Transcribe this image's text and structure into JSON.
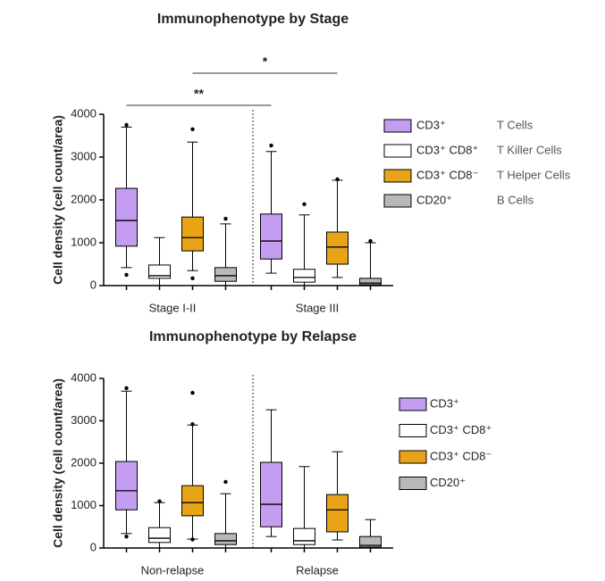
{
  "chart_data": [
    {
      "type": "box",
      "title": "Immunophenotype by Stage",
      "y_label": "Cell density (cell count/area)",
      "categories": [
        "Stage I-II",
        "Stage III"
      ],
      "ylim": [
        0,
        4000
      ],
      "yticks": [
        0,
        1000,
        2000,
        3000,
        4000
      ],
      "series": [
        {
          "name": "CD3⁺",
          "description": "T Cells",
          "color": "#c39df2",
          "min": [
            420,
            290
          ],
          "q1": [
            920,
            620
          ],
          "median": [
            1520,
            1040
          ],
          "q3": [
            2270,
            1670
          ],
          "max": [
            3700,
            3130
          ],
          "outliers": [
            [
              3750,
              250
            ],
            [
              3270
            ]
          ]
        },
        {
          "name": "CD3⁺ CD8⁺",
          "description": "T Killer Cells",
          "color": "#ffffff",
          "min": [
            0,
            0
          ],
          "q1": [
            170,
            80
          ],
          "median": [
            230,
            190
          ],
          "q3": [
            480,
            380
          ],
          "max": [
            1120,
            1650
          ],
          "outliers": [
            [],
            [
              1900
            ]
          ]
        },
        {
          "name": "CD3⁺ CD8⁻",
          "description": "T Helper Cells",
          "color": "#e8a317",
          "min": [
            350,
            190
          ],
          "q1": [
            810,
            500
          ],
          "median": [
            1120,
            900
          ],
          "q3": [
            1600,
            1250
          ],
          "max": [
            3350,
            2460
          ],
          "outliers": [
            [
              3650,
              170
            ],
            [
              2480
            ]
          ]
        },
        {
          "name": "CD20⁺",
          "description": "B Cells",
          "color": "#b8b8b8",
          "min": [
            0,
            0
          ],
          "q1": [
            100,
            20
          ],
          "median": [
            230,
            60
          ],
          "q3": [
            420,
            170
          ],
          "max": [
            1440,
            1000
          ],
          "outliers": [
            [
              1560
            ],
            [
              1040
            ]
          ]
        }
      ],
      "annotations": [
        {
          "text": "**",
          "series": 0
        },
        {
          "text": "*",
          "series": 2
        }
      ]
    },
    {
      "type": "box",
      "title": "Immunophenotype by Relapse",
      "y_label": "Cell density (cell count/area)",
      "categories": [
        "Non-relapse",
        "Relapse"
      ],
      "ylim": [
        0,
        4000
      ],
      "yticks": [
        0,
        1000,
        2000,
        3000,
        4000
      ],
      "series": [
        {
          "name": "CD3⁺",
          "color": "#c39df2",
          "min": [
            340,
            270
          ],
          "q1": [
            900,
            500
          ],
          "median": [
            1350,
            1030
          ],
          "q3": [
            2040,
            2020
          ],
          "max": [
            3700,
            3260
          ],
          "outliers": [
            [
              3770,
              270
            ],
            []
          ]
        },
        {
          "name": "CD3⁺ CD8⁺",
          "color": "#ffffff",
          "min": [
            0,
            0
          ],
          "q1": [
            130,
            80
          ],
          "median": [
            230,
            170
          ],
          "q3": [
            480,
            460
          ],
          "max": [
            1070,
            1920
          ],
          "outliers": [
            [
              1100
            ],
            []
          ]
        },
        {
          "name": "CD3⁺ CD8⁻",
          "color": "#e8a317",
          "min": [
            210,
            190
          ],
          "q1": [
            760,
            380
          ],
          "median": [
            1070,
            900
          ],
          "q3": [
            1470,
            1260
          ],
          "max": [
            2900,
            2270
          ],
          "outliers": [
            [
              3660,
              2920,
              200
            ],
            []
          ]
        },
        {
          "name": "CD20⁺",
          "color": "#b8b8b8",
          "min": [
            0,
            0
          ],
          "q1": [
            80,
            20
          ],
          "median": [
            170,
            60
          ],
          "q3": [
            340,
            270
          ],
          "max": [
            1280,
            670
          ],
          "outliers": [
            [
              1560
            ],
            []
          ]
        }
      ]
    }
  ]
}
